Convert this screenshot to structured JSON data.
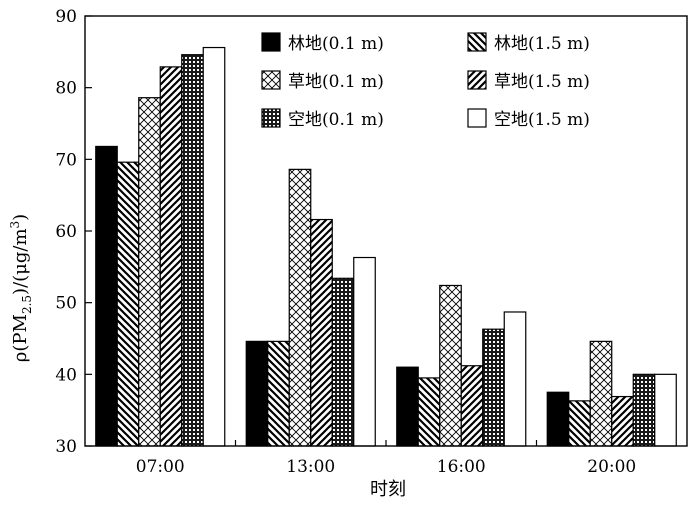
{
  "chart_data": {
    "type": "bar",
    "xlabel": "时刻",
    "ylabel": {
      "prefix": "ρ(PM",
      "sub": "2.5",
      "mid": ")/(μg/m",
      "sup": "3",
      "suffix": ")"
    },
    "ylim": [
      30,
      90
    ],
    "yticks": [
      "30",
      "40",
      "50",
      "60",
      "70",
      "80",
      "90"
    ],
    "categories": [
      "07:00",
      "13:00",
      "16:00",
      "20:00"
    ],
    "grid": false,
    "legend_position": "top-right",
    "series": [
      {
        "name": "林地(0.1 m)",
        "pattern": "solid-black",
        "values": [
          71.8,
          44.6,
          41.0,
          37.5
        ]
      },
      {
        "name": "林地(1.5 m)",
        "pattern": "hatch-back-diagonal",
        "values": [
          69.6,
          44.6,
          39.5,
          36.3
        ]
      },
      {
        "name": "草地(0.1 m)",
        "pattern": "crosshatch",
        "values": [
          78.6,
          68.6,
          52.4,
          44.6
        ]
      },
      {
        "name": "草地(1.5 m)",
        "pattern": "hatch-forward-diagonal",
        "values": [
          82.9,
          61.6,
          41.2,
          36.9
        ]
      },
      {
        "name": "空地(0.1 m)",
        "pattern": "dense-grid",
        "values": [
          84.6,
          53.4,
          46.3,
          40.0
        ]
      },
      {
        "name": "空地(1.5 m)",
        "pattern": "solid-white",
        "values": [
          85.6,
          56.3,
          48.7,
          40.0
        ]
      }
    ]
  }
}
